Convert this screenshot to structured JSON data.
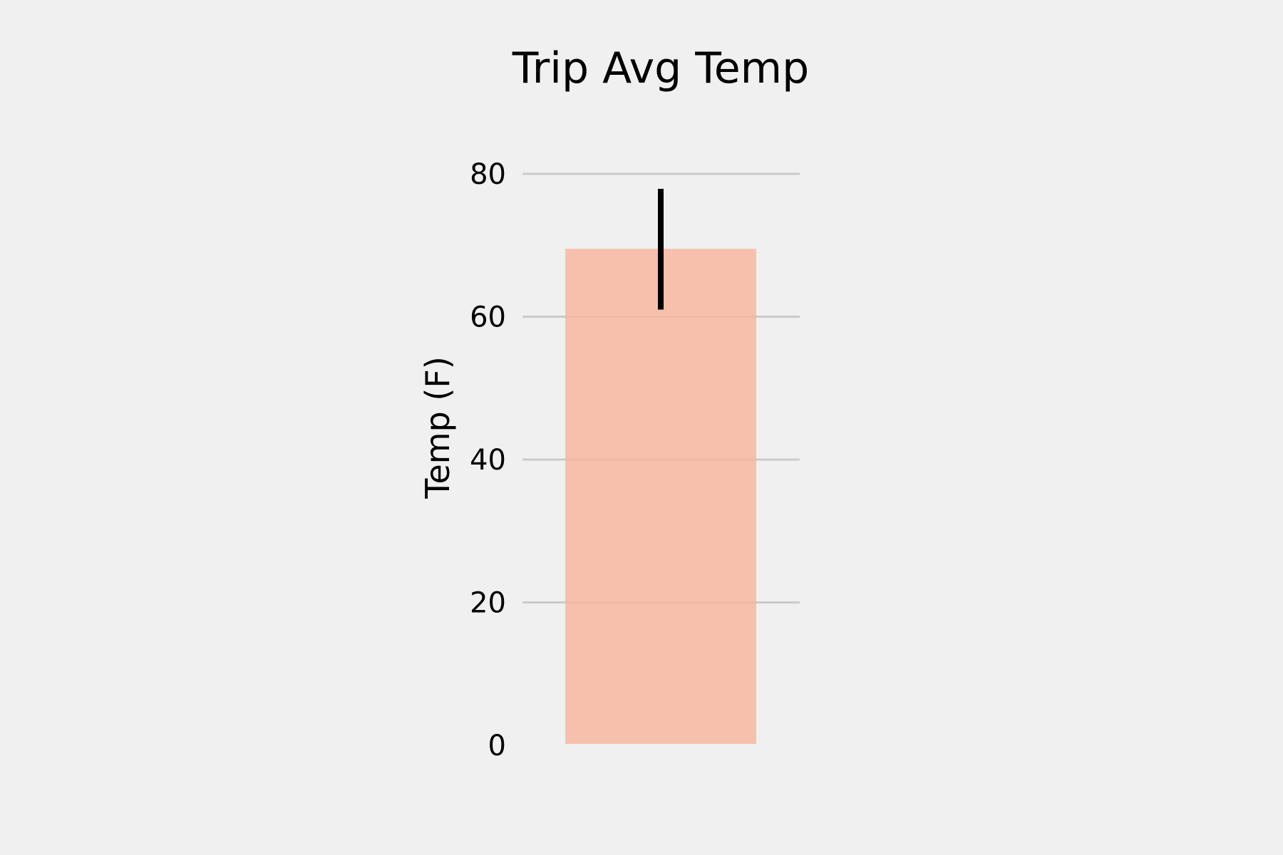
{
  "chart_data": {
    "type": "bar",
    "title": "Trip Avg Temp",
    "xlabel": "",
    "ylabel": "Temp (F)",
    "categories": [
      ""
    ],
    "values": [
      69.5
    ],
    "error_bars": [
      {
        "low": 61.0,
        "high": 77.9
      }
    ],
    "ylim": [
      0,
      80
    ],
    "yticks": [
      "0",
      "20",
      "40",
      "60",
      "80"
    ],
    "grid": "horizontal",
    "legend": "none",
    "colors": {
      "background": "#f0f0f0",
      "bar": "#f9b49b",
      "bar_opacity": "0.8",
      "error_bar": "#000000",
      "grid": "#cbcbcb"
    }
  }
}
